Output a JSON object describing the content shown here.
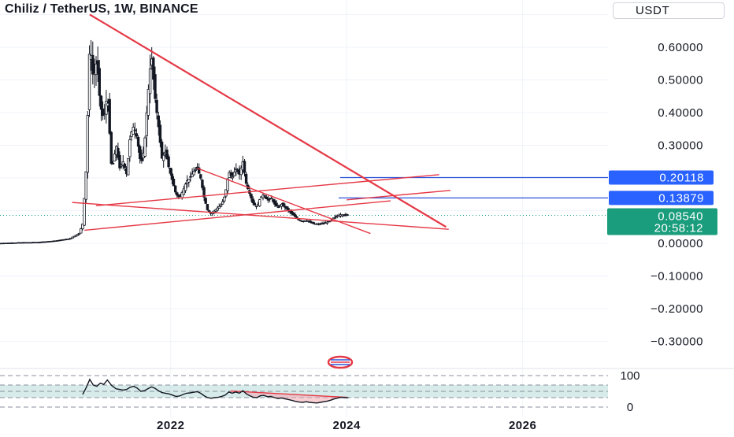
{
  "header": {
    "title": "Chiliz / TetherUS, 1W, BINANCE",
    "currency": "USDT"
  },
  "colors": {
    "candles": "#131722",
    "trendlines": "#e53946",
    "horizontal_lines": "#2a52d9",
    "level_label_bg": "#2962ff",
    "last_price_bg": "#1a9d7c",
    "rsi_band": "#b7ddd8",
    "rsi_line": "#131722"
  },
  "labels": {
    "level_1": "0.20118",
    "level_2": "0.13879",
    "last_price": "0.08540",
    "countdown": "20:58:12"
  },
  "chart_data": [
    {
      "type": "candlestick",
      "title": "Chiliz / TetherUS, 1W, BINANCE",
      "y_tick_labels": [
        "0.60000",
        "0.50000",
        "0.40000",
        "0.30000",
        "0.00000",
        "−0.10000",
        "−0.20000",
        "−0.30000"
      ],
      "y_ticks": [
        0.6,
        0.5,
        0.4,
        0.3,
        0.0,
        -0.1,
        -0.2,
        -0.3
      ],
      "x_tick_labels": [
        "2022",
        "2024",
        "2026"
      ],
      "x_ticks": [
        2022.0,
        2024.0,
        2026.0
      ],
      "xlim": [
        2020.06,
        2026.97
      ],
      "ylim": [
        -0.37,
        0.72
      ],
      "close_path": [
        [
          2020.06,
          0.0
        ],
        [
          2020.3,
          0.002
        ],
        [
          2020.5,
          0.003
        ],
        [
          2020.7,
          0.008
        ],
        [
          2020.85,
          0.014
        ],
        [
          2020.96,
          0.03
        ],
        [
          2021.0,
          0.06
        ],
        [
          2021.04,
          0.23
        ],
        [
          2021.08,
          0.62
        ],
        [
          2021.12,
          0.5
        ],
        [
          2021.16,
          0.56
        ],
        [
          2021.2,
          0.42
        ],
        [
          2021.24,
          0.38
        ],
        [
          2021.28,
          0.46
        ],
        [
          2021.33,
          0.22
        ],
        [
          2021.38,
          0.3
        ],
        [
          2021.42,
          0.23
        ],
        [
          2021.46,
          0.25
        ],
        [
          2021.5,
          0.21
        ],
        [
          2021.54,
          0.33
        ],
        [
          2021.58,
          0.36
        ],
        [
          2021.62,
          0.32
        ],
        [
          2021.66,
          0.24
        ],
        [
          2021.7,
          0.29
        ],
        [
          2021.74,
          0.45
        ],
        [
          2021.78,
          0.58
        ],
        [
          2021.82,
          0.45
        ],
        [
          2021.86,
          0.36
        ],
        [
          2021.9,
          0.26
        ],
        [
          2021.94,
          0.28
        ],
        [
          2021.98,
          0.23
        ],
        [
          2022.02,
          0.19
        ],
        [
          2022.06,
          0.15
        ],
        [
          2022.1,
          0.14
        ],
        [
          2022.14,
          0.16
        ],
        [
          2022.18,
          0.19
        ],
        [
          2022.22,
          0.2
        ],
        [
          2022.26,
          0.22
        ],
        [
          2022.3,
          0.23
        ],
        [
          2022.34,
          0.2
        ],
        [
          2022.38,
          0.14
        ],
        [
          2022.42,
          0.1
        ],
        [
          2022.46,
          0.09
        ],
        [
          2022.5,
          0.1
        ],
        [
          2022.54,
          0.11
        ],
        [
          2022.58,
          0.12
        ],
        [
          2022.62,
          0.15
        ],
        [
          2022.66,
          0.22
        ],
        [
          2022.7,
          0.2
        ],
        [
          2022.74,
          0.23
        ],
        [
          2022.78,
          0.21
        ],
        [
          2022.82,
          0.25
        ],
        [
          2022.86,
          0.18
        ],
        [
          2022.9,
          0.15
        ],
        [
          2022.94,
          0.12
        ],
        [
          2022.98,
          0.11
        ],
        [
          2023.02,
          0.14
        ],
        [
          2023.06,
          0.15
        ],
        [
          2023.1,
          0.13
        ],
        [
          2023.14,
          0.14
        ],
        [
          2023.18,
          0.12
        ],
        [
          2023.22,
          0.11
        ],
        [
          2023.26,
          0.12
        ],
        [
          2023.3,
          0.11
        ],
        [
          2023.34,
          0.1
        ],
        [
          2023.38,
          0.09
        ],
        [
          2023.42,
          0.08
        ],
        [
          2023.46,
          0.07
        ],
        [
          2023.5,
          0.068
        ],
        [
          2023.54,
          0.07
        ],
        [
          2023.58,
          0.065
        ],
        [
          2023.62,
          0.06
        ],
        [
          2023.66,
          0.058
        ],
        [
          2023.7,
          0.06
        ],
        [
          2023.74,
          0.062
        ],
        [
          2023.78,
          0.065
        ],
        [
          2023.82,
          0.07
        ],
        [
          2023.86,
          0.08
        ],
        [
          2023.9,
          0.085
        ],
        [
          2023.94,
          0.088
        ],
        [
          2023.98,
          0.086
        ],
        [
          2024.02,
          0.085
        ]
      ],
      "horizontal_levels": [
        0.20118,
        0.13879
      ],
      "last_price": 0.0854,
      "trendlines": [
        [
          [
            2021.08,
            0.7
          ],
          [
            2025.13,
            0.05
          ]
        ],
        [
          [
            2021.02,
            0.04
          ],
          [
            2024.5,
            0.13
          ]
        ],
        [
          [
            2021.15,
            0.115
          ],
          [
            2025.05,
            0.21
          ]
        ],
        [
          [
            2020.88,
            0.125
          ],
          [
            2025.16,
            0.043
          ]
        ],
        [
          [
            2022.3,
            0.23
          ],
          [
            2024.27,
            0.03
          ]
        ],
        [
          [
            2024.0,
            0.133
          ],
          [
            2025.18,
            0.162
          ]
        ]
      ]
    },
    {
      "type": "line",
      "name": "RSI",
      "y_tick_labels": [
        "100",
        "0"
      ],
      "y_ticks": [
        100,
        0
      ],
      "ylim": [
        0,
        100
      ],
      "band": [
        30,
        70
      ],
      "values": [
        [
          2021.0,
          40
        ],
        [
          2021.04,
          62
        ],
        [
          2021.08,
          88
        ],
        [
          2021.12,
          70
        ],
        [
          2021.16,
          66
        ],
        [
          2021.2,
          76
        ],
        [
          2021.24,
          72
        ],
        [
          2021.28,
          86
        ],
        [
          2021.33,
          68
        ],
        [
          2021.38,
          58
        ],
        [
          2021.42,
          56
        ],
        [
          2021.46,
          54
        ],
        [
          2021.5,
          56
        ],
        [
          2021.54,
          63
        ],
        [
          2021.58,
          66
        ],
        [
          2021.62,
          60
        ],
        [
          2021.66,
          50
        ],
        [
          2021.7,
          52
        ],
        [
          2021.74,
          58
        ],
        [
          2021.78,
          64
        ],
        [
          2021.82,
          60
        ],
        [
          2021.86,
          52
        ],
        [
          2021.9,
          46
        ],
        [
          2021.94,
          44
        ],
        [
          2021.98,
          42
        ],
        [
          2022.02,
          38
        ],
        [
          2022.06,
          34
        ],
        [
          2022.1,
          35
        ],
        [
          2022.14,
          40
        ],
        [
          2022.18,
          44
        ],
        [
          2022.22,
          45
        ],
        [
          2022.26,
          47
        ],
        [
          2022.3,
          49
        ],
        [
          2022.34,
          44
        ],
        [
          2022.38,
          36
        ],
        [
          2022.42,
          30
        ],
        [
          2022.46,
          28
        ],
        [
          2022.5,
          30
        ],
        [
          2022.54,
          31
        ],
        [
          2022.58,
          34
        ],
        [
          2022.62,
          38
        ],
        [
          2022.66,
          48
        ],
        [
          2022.7,
          44
        ],
        [
          2022.74,
          48
        ],
        [
          2022.78,
          44
        ],
        [
          2022.82,
          52
        ],
        [
          2022.86,
          42
        ],
        [
          2022.9,
          36
        ],
        [
          2022.94,
          31
        ],
        [
          2022.98,
          30
        ],
        [
          2023.02,
          36
        ],
        [
          2023.06,
          37
        ],
        [
          2023.1,
          33
        ],
        [
          2023.14,
          34
        ],
        [
          2023.18,
          30
        ],
        [
          2023.22,
          27
        ],
        [
          2023.26,
          29
        ],
        [
          2023.3,
          26
        ],
        [
          2023.34,
          24
        ],
        [
          2023.38,
          21
        ],
        [
          2023.42,
          18
        ],
        [
          2023.46,
          16
        ],
        [
          2023.5,
          15
        ],
        [
          2023.54,
          17
        ],
        [
          2023.58,
          15
        ],
        [
          2023.62,
          14
        ],
        [
          2023.66,
          13
        ],
        [
          2023.7,
          15
        ],
        [
          2023.74,
          17
        ],
        [
          2023.78,
          19
        ],
        [
          2023.82,
          22
        ],
        [
          2023.86,
          26
        ],
        [
          2023.9,
          29
        ],
        [
          2023.94,
          31
        ],
        [
          2023.98,
          30
        ],
        [
          2024.02,
          30
        ]
      ],
      "divergence_line": [
        [
          2022.68,
          51
        ],
        [
          2024.0,
          31
        ]
      ]
    }
  ]
}
